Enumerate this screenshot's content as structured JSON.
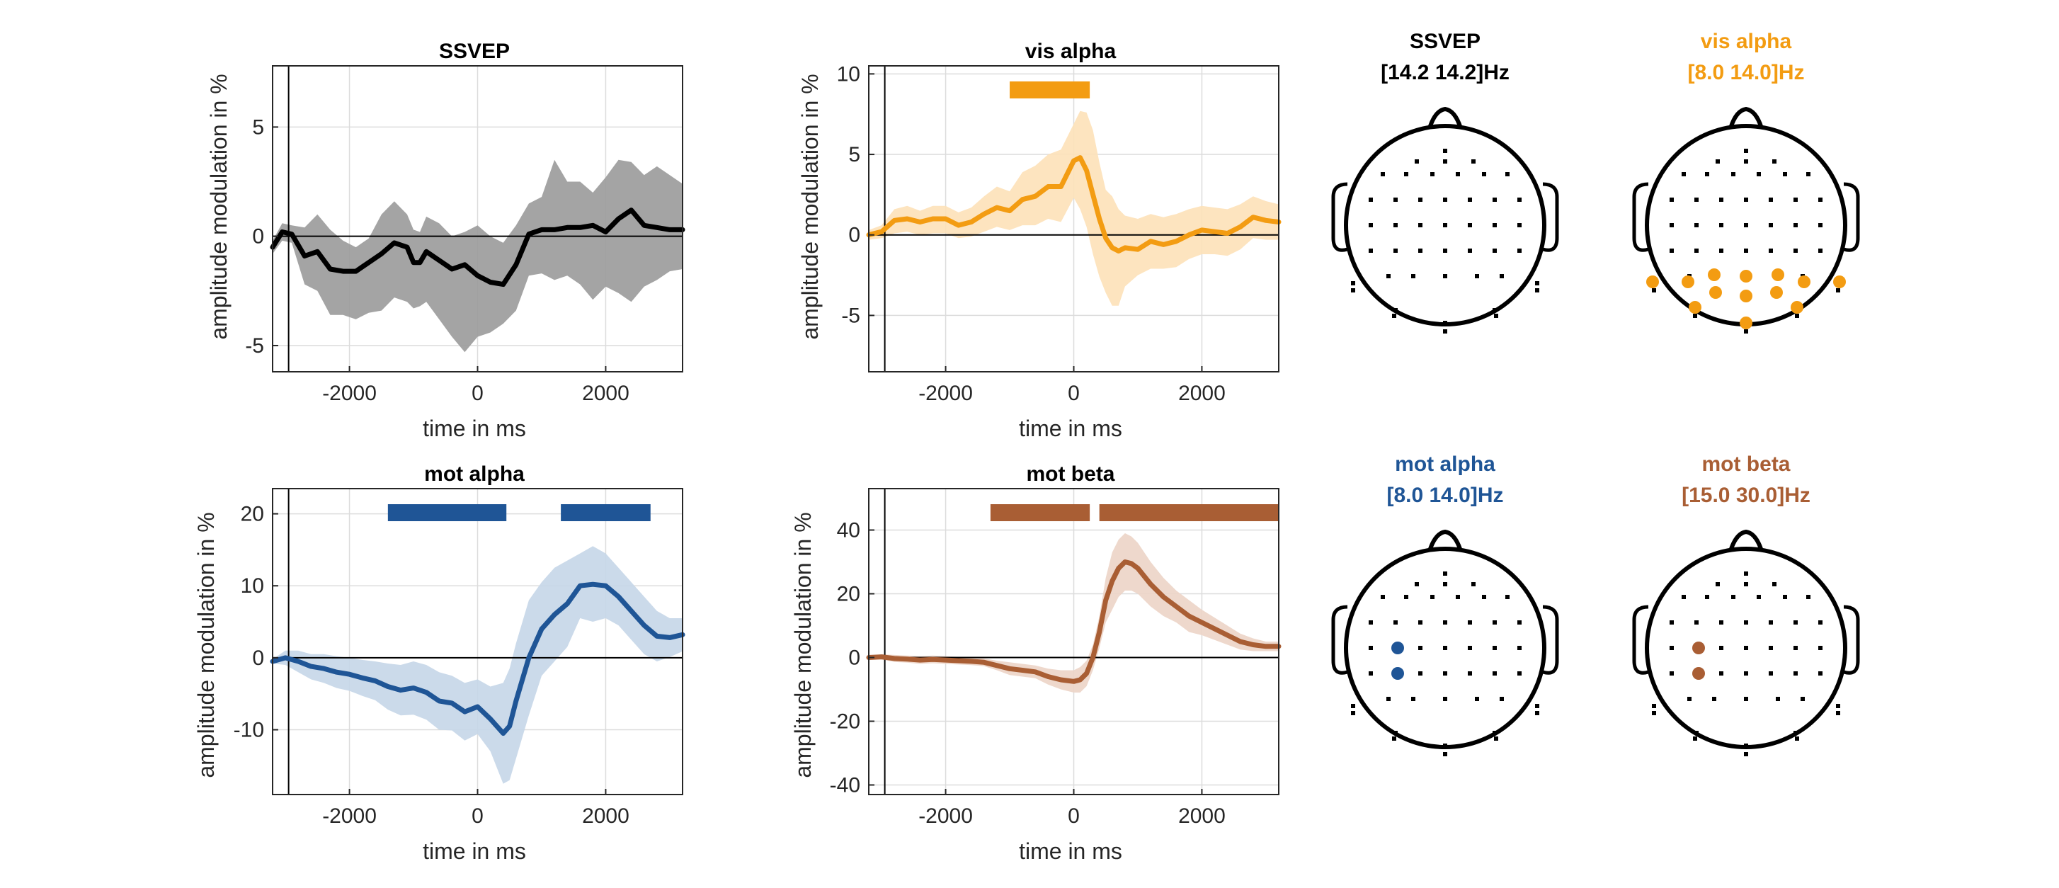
{
  "chart_data": [
    {
      "type": "line",
      "title": "SSVEP",
      "xlabel": "time in ms",
      "ylabel": "amplitude modulation in %",
      "color": "#000000",
      "band_color": "#9a9a9a",
      "xlim": [
        -3200,
        3200
      ],
      "ylim": [
        -6.2,
        7.8
      ],
      "xticks": [
        -2000,
        0,
        2000
      ],
      "xtick_labels": [
        "-2000",
        "0",
        "2000"
      ],
      "yticks": [
        -5,
        0,
        5
      ],
      "ytick_labels": [
        "-5",
        "0",
        "5"
      ],
      "grid": true,
      "event_line_x": -2950,
      "series": [
        {
          "x": [
            -3200,
            -3050,
            -2900,
            -2700,
            -2500,
            -2300,
            -2100,
            -1900,
            -1700,
            -1500,
            -1300,
            -1100,
            -1000,
            -900,
            -800,
            -600,
            -400,
            -200,
            0,
            200,
            400,
            600,
            800,
            1000,
            1200,
            1400,
            1600,
            1800,
            2000,
            2200,
            2400,
            2600,
            2800,
            3000,
            3200
          ],
          "values": [
            -0.5,
            0.2,
            0.1,
            -0.9,
            -0.7,
            -1.5,
            -1.6,
            -1.6,
            -1.2,
            -0.8,
            -0.3,
            -0.5,
            -1.2,
            -1.2,
            -0.7,
            -1.1,
            -1.5,
            -1.3,
            -1.8,
            -2.1,
            -2.2,
            -1.3,
            0.1,
            0.3,
            0.3,
            0.4,
            0.4,
            0.5,
            0.2,
            0.8,
            1.2,
            0.5,
            0.4,
            0.3,
            0.3
          ],
          "upper": [
            -0.2,
            0.6,
            0.5,
            0.4,
            1.0,
            0.3,
            -0.2,
            -0.5,
            -0.1,
            1.0,
            1.6,
            1.0,
            0.3,
            0.2,
            0.9,
            0.6,
            0.0,
            0.2,
            0.5,
            0.0,
            -0.3,
            0.5,
            1.5,
            1.8,
            3.5,
            2.5,
            2.5,
            2.0,
            2.7,
            3.5,
            3.4,
            2.8,
            3.2,
            2.8,
            2.4
          ],
          "lower": [
            -0.8,
            -0.2,
            -0.3,
            -2.2,
            -2.5,
            -3.6,
            -3.6,
            -3.8,
            -3.5,
            -3.4,
            -2.8,
            -3.0,
            -3.3,
            -3.2,
            -3.0,
            -3.8,
            -4.6,
            -5.3,
            -4.6,
            -4.4,
            -4.0,
            -3.4,
            -1.8,
            -1.7,
            -2.0,
            -1.8,
            -2.2,
            -2.9,
            -2.3,
            -2.6,
            -3.0,
            -2.3,
            -2.0,
            -1.6,
            -1.5
          ]
        }
      ],
      "sig_bars": []
    },
    {
      "type": "line",
      "title": "vis alpha",
      "xlabel": "time in ms",
      "ylabel": "amplitude modulation in %",
      "color": "#f39c12",
      "band_color": "#fde1b8",
      "xlim": [
        -3200,
        3200
      ],
      "ylim": [
        -8.5,
        10.5
      ],
      "xticks": [
        -2000,
        0,
        2000
      ],
      "xtick_labels": [
        "-2000",
        "0",
        "2000"
      ],
      "yticks": [
        -5,
        0,
        5,
        10
      ],
      "ytick_labels": [
        "-5",
        "0",
        "5",
        "10"
      ],
      "grid": true,
      "event_line_x": -2950,
      "series": [
        {
          "x": [
            -3200,
            -3000,
            -2800,
            -2600,
            -2400,
            -2200,
            -2000,
            -1800,
            -1600,
            -1400,
            -1200,
            -1000,
            -800,
            -600,
            -400,
            -200,
            0,
            100,
            200,
            300,
            400,
            500,
            600,
            700,
            800,
            1000,
            1200,
            1400,
            1600,
            1800,
            2000,
            2200,
            2400,
            2600,
            2800,
            3000,
            3200
          ],
          "values": [
            0.0,
            0.2,
            0.9,
            1.0,
            0.8,
            1.0,
            1.0,
            0.6,
            0.8,
            1.3,
            1.7,
            1.5,
            2.2,
            2.4,
            3.0,
            3.0,
            4.6,
            4.8,
            4.0,
            2.5,
            1.0,
            -0.2,
            -0.8,
            -1.0,
            -0.8,
            -0.9,
            -0.4,
            -0.6,
            -0.4,
            0.0,
            0.3,
            0.2,
            0.1,
            0.5,
            1.1,
            0.9,
            0.8
          ],
          "upper": [
            0.3,
            0.6,
            1.6,
            1.8,
            1.5,
            1.8,
            1.8,
            1.4,
            1.7,
            2.4,
            3.0,
            2.7,
            3.9,
            4.3,
            5.0,
            5.3,
            6.9,
            7.7,
            7.6,
            6.5,
            4.5,
            2.8,
            2.4,
            1.6,
            1.2,
            1.0,
            1.3,
            1.1,
            1.3,
            1.6,
            1.8,
            1.7,
            1.6,
            1.9,
            2.4,
            2.1,
            1.9
          ],
          "lower": [
            -0.3,
            -0.2,
            0.1,
            0.2,
            0.0,
            0.1,
            0.1,
            -0.2,
            -0.1,
            0.2,
            0.5,
            0.3,
            0.6,
            0.6,
            1.0,
            0.8,
            2.3,
            1.6,
            0.5,
            -1.2,
            -2.6,
            -3.6,
            -4.4,
            -4.4,
            -3.2,
            -2.5,
            -2.1,
            -2.1,
            -2.0,
            -1.5,
            -1.2,
            -1.2,
            -1.3,
            -0.9,
            -0.2,
            -0.3,
            -0.3
          ]
        }
      ],
      "sig_bars": [
        [
          -1000,
          250
        ]
      ]
    },
    {
      "type": "line",
      "title": "mot alpha",
      "xlabel": "time in ms",
      "ylabel": "amplitude modulation in %",
      "color": "#1f5596",
      "band_color": "#c5d6e8",
      "xlim": [
        -3200,
        3200
      ],
      "ylim": [
        -19,
        23.5
      ],
      "xticks": [
        -2000,
        0,
        2000
      ],
      "xtick_labels": [
        "-2000",
        "0",
        "2000"
      ],
      "yticks": [
        -10,
        0,
        10,
        20
      ],
      "ytick_labels": [
        "-10",
        "0",
        "10",
        "20"
      ],
      "grid": true,
      "event_line_x": -2950,
      "series": [
        {
          "x": [
            -3200,
            -3000,
            -2800,
            -2600,
            -2400,
            -2200,
            -2000,
            -1800,
            -1600,
            -1400,
            -1200,
            -1000,
            -800,
            -600,
            -400,
            -200,
            0,
            200,
            400,
            500,
            600,
            800,
            1000,
            1200,
            1400,
            1600,
            1800,
            2000,
            2200,
            2400,
            2600,
            2800,
            3000,
            3200
          ],
          "values": [
            -0.5,
            0.0,
            -0.5,
            -1.2,
            -1.5,
            -2.0,
            -2.3,
            -2.8,
            -3.2,
            -4.0,
            -4.5,
            -4.2,
            -4.8,
            -6.0,
            -6.3,
            -7.5,
            -6.8,
            -8.5,
            -10.5,
            -9.5,
            -6.0,
            0.0,
            4.0,
            6.0,
            7.5,
            10.0,
            10.2,
            10.0,
            8.5,
            6.5,
            4.5,
            3.0,
            2.8,
            3.2
          ],
          "upper": [
            -0.2,
            1.0,
            1.0,
            0.5,
            0.5,
            0.2,
            0.0,
            -0.3,
            -0.5,
            -0.8,
            -1.0,
            -0.5,
            -1.0,
            -2.0,
            -2.5,
            -3.5,
            -3.0,
            -4.0,
            -3.5,
            -1.5,
            2.0,
            8.0,
            10.5,
            12.5,
            13.5,
            14.5,
            15.5,
            14.5,
            12.5,
            10.5,
            8.5,
            6.5,
            5.5,
            5.5
          ],
          "lower": [
            -0.8,
            -1.0,
            -2.0,
            -3.0,
            -3.5,
            -4.2,
            -4.6,
            -5.3,
            -5.9,
            -7.2,
            -8.0,
            -7.9,
            -8.6,
            -10.0,
            -10.1,
            -11.5,
            -10.6,
            -13.0,
            -17.5,
            -17.0,
            -14.0,
            -8.0,
            -2.5,
            -0.5,
            1.5,
            5.5,
            5.0,
            5.5,
            4.5,
            2.5,
            0.5,
            -0.5,
            0.1,
            0.9
          ]
        }
      ],
      "sig_bars": [
        [
          -1400,
          450
        ],
        [
          1300,
          2700
        ]
      ]
    },
    {
      "type": "line",
      "title": "mot beta",
      "xlabel": "time in ms",
      "ylabel": "amplitude modulation in %",
      "color": "#a95e34",
      "band_color": "#ecd4c6",
      "xlim": [
        -3200,
        3200
      ],
      "ylim": [
        -43,
        53
      ],
      "xticks": [
        -2000,
        0,
        2000
      ],
      "xtick_labels": [
        "-2000",
        "0",
        "2000"
      ],
      "yticks": [
        -40,
        -20,
        0,
        20,
        40
      ],
      "ytick_labels": [
        "-40",
        "-20",
        "0",
        "20",
        "40"
      ],
      "grid": true,
      "event_line_x": -2950,
      "series": [
        {
          "x": [
            -3200,
            -3000,
            -2800,
            -2600,
            -2400,
            -2200,
            -2000,
            -1800,
            -1600,
            -1400,
            -1200,
            -1000,
            -800,
            -600,
            -400,
            -200,
            0,
            100,
            200,
            300,
            400,
            500,
            600,
            700,
            800,
            900,
            1000,
            1200,
            1400,
            1600,
            1800,
            2000,
            2200,
            2400,
            2600,
            2800,
            3000,
            3200
          ],
          "values": [
            0.0,
            0.2,
            -0.3,
            -0.5,
            -0.8,
            -0.6,
            -0.8,
            -1.0,
            -1.2,
            -1.5,
            -2.5,
            -3.5,
            -4.0,
            -4.5,
            -6.0,
            -7.0,
            -7.5,
            -7.0,
            -5.0,
            0.0,
            8.0,
            18.0,
            24.0,
            28.0,
            30.0,
            29.5,
            28.0,
            23.0,
            19.0,
            16.0,
            13.0,
            11.0,
            9.0,
            7.0,
            5.0,
            4.0,
            3.5,
            3.5
          ],
          "upper": [
            0.5,
            1.0,
            0.8,
            0.6,
            0.4,
            0.6,
            0.4,
            0.2,
            0.0,
            -0.3,
            -1.0,
            -1.5,
            -2.0,
            -2.5,
            -3.5,
            -4.0,
            -4.0,
            -3.0,
            -1.0,
            4.0,
            13.0,
            25.0,
            33.0,
            37.0,
            39.0,
            38.0,
            36.0,
            30.0,
            25.0,
            21.0,
            18.0,
            15.0,
            12.5,
            10.0,
            7.5,
            6.0,
            5.0,
            5.0
          ],
          "lower": [
            -0.5,
            -0.6,
            -1.4,
            -1.6,
            -2.0,
            -1.8,
            -2.0,
            -2.2,
            -2.4,
            -2.7,
            -4.0,
            -5.5,
            -6.0,
            -6.5,
            -8.5,
            -10.0,
            -11.0,
            -11.0,
            -9.0,
            -4.0,
            3.0,
            11.0,
            15.0,
            19.0,
            21.0,
            21.0,
            20.0,
            16.0,
            13.0,
            11.0,
            8.0,
            7.0,
            5.5,
            4.0,
            2.5,
            2.0,
            2.0,
            2.0
          ]
        }
      ],
      "sig_bars": [
        [
          -1300,
          250
        ],
        [
          400,
          3200
        ]
      ]
    }
  ],
  "topoplots": [
    {
      "title": "SSVEP",
      "freq": "[14.2 14.2]Hz",
      "color": "#000000",
      "highlight_color": "#000000",
      "highlighted": []
    },
    {
      "title": "vis alpha",
      "freq": "[8.0 14.0]Hz",
      "color": "#f39c12",
      "highlight_color": "#f39c12",
      "highlighted": [
        "T7o",
        "P7",
        "P3",
        "Pz",
        "P4",
        "P8",
        "T8o",
        "PO7",
        "PO3",
        "POz",
        "PO4",
        "PO8",
        "Oz"
      ]
    },
    {
      "title": "mot alpha",
      "freq": "[8.0 14.0]Hz",
      "color": "#1f5596",
      "highlight_color": "#1f5596",
      "highlighted": [
        "C3",
        "CP3"
      ]
    },
    {
      "title": "mot beta",
      "freq": "[15.0 30.0]Hz",
      "color": "#a95e34",
      "highlight_color": "#a95e34",
      "highlighted": [
        "C3",
        "CP3"
      ]
    }
  ]
}
